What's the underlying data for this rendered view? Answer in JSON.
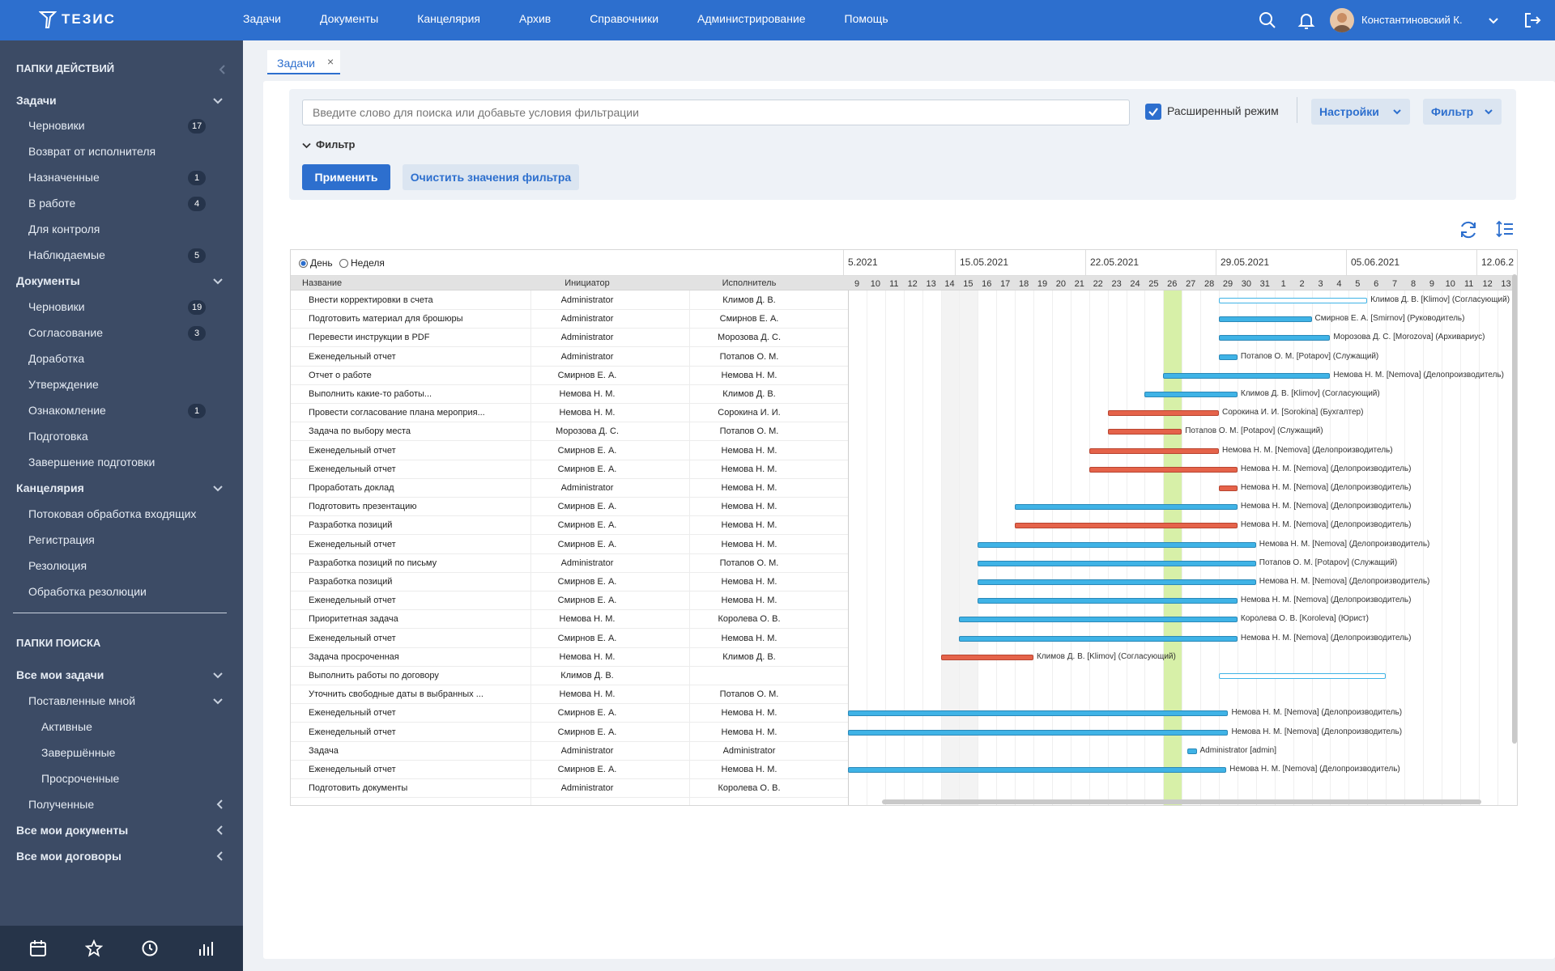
{
  "app": {
    "logo": "ТЕЗИС"
  },
  "topnav": [
    "Задачи",
    "Документы",
    "Канцелярия",
    "Архив",
    "Справочники",
    "Администрирование",
    "Помощь"
  ],
  "user": {
    "name": "Константиновский К."
  },
  "sidebar": {
    "actions_title": "ПАПКИ ДЕЙСТВИЙ",
    "search_title": "ПАПКИ ПОИСКА",
    "groups": [
      {
        "title": "Задачи",
        "items": [
          {
            "label": "Черновики",
            "count": "17"
          },
          {
            "label": "Возврат от исполнителя",
            "count": ""
          },
          {
            "label": "Назначенные",
            "count": "1"
          },
          {
            "label": "В работе",
            "count": "4"
          },
          {
            "label": "Для контроля",
            "count": ""
          },
          {
            "label": "Наблюдаемые",
            "count": "5"
          }
        ]
      },
      {
        "title": "Документы",
        "items": [
          {
            "label": "Черновики",
            "count": "19"
          },
          {
            "label": "Согласование",
            "count": "3"
          },
          {
            "label": "Доработка",
            "count": ""
          },
          {
            "label": "Утверждение",
            "count": ""
          },
          {
            "label": "Ознакомление",
            "count": "1"
          },
          {
            "label": "Подготовка",
            "count": ""
          },
          {
            "label": "Завершение подготовки",
            "count": ""
          }
        ]
      },
      {
        "title": "Канцелярия",
        "items": [
          {
            "label": "Потоковая обработка входящих",
            "count": ""
          },
          {
            "label": "Регистрация",
            "count": ""
          },
          {
            "label": "Резолюция",
            "count": ""
          },
          {
            "label": "Обработка резолюции",
            "count": ""
          }
        ]
      }
    ],
    "search": {
      "all_tasks": "Все мои задачи",
      "set_by_me": "Поставленные мной",
      "sub": [
        "Активные",
        "Завершённые",
        "Просроченные"
      ],
      "received": "Полученные",
      "all_docs": "Все мои документы",
      "all_contracts": "Все мои договоры"
    }
  },
  "tab": {
    "label": "Задачи"
  },
  "filter": {
    "placeholder": "Введите слово для поиска или добавьте условия фильтрации",
    "advanced_label": "Расширенный режим",
    "settings": "Настройки",
    "filter_btn": "Фильтр",
    "section": "Фильтр",
    "apply": "Применить",
    "clear": "Очистить значения фильтра"
  },
  "gantt": {
    "scale": {
      "day": "День",
      "week": "Неделя"
    },
    "weeks": [
      "5.2021",
      "15.05.2021",
      "22.05.2021",
      "29.05.2021",
      "05.06.2021",
      "12.06.2"
    ],
    "days": [
      "9",
      "10",
      "11",
      "12",
      "13",
      "14",
      "15",
      "16",
      "17",
      "18",
      "19",
      "20",
      "21",
      "22",
      "23",
      "24",
      "25",
      "26",
      "27",
      "28",
      "29",
      "30",
      "31",
      "1",
      "2",
      "3",
      "4",
      "5",
      "6",
      "7",
      "8",
      "9",
      "10",
      "11",
      "12",
      "13"
    ],
    "columns": {
      "name": "Название",
      "initiator": "Инициатор",
      "executor": "Исполнитель"
    },
    "colors": {
      "blue": "#3fb3e6",
      "orange": "#e5634a",
      "today": "#d7f0a8"
    },
    "rows": [
      {
        "name": "Внести корректировки в счета",
        "initiator": "Administrator",
        "executor": "Климов Д. В.",
        "start": 20,
        "end": 28,
        "color": "white",
        "label": "Климов Д. В. [Klimov] (Согласующий)"
      },
      {
        "name": "Подготовить материал для брошюры",
        "initiator": "Administrator",
        "executor": "Смирнов Е. А.",
        "start": 20,
        "end": 25,
        "color": "blue",
        "label": "Смирнов Е. А. [Smirnov] (Руководитель)"
      },
      {
        "name": "Перевести инструкции в PDF",
        "initiator": "Administrator",
        "executor": "Морозова Д. С.",
        "start": 20,
        "end": 26,
        "color": "blue",
        "label": "Морозова Д. С. [Morozova] (Архивариус)"
      },
      {
        "name": "Еженедельный отчет",
        "initiator": "Administrator",
        "executor": "Потапов О. М.",
        "start": 20,
        "end": 21,
        "color": "blue",
        "label": "Потапов О. М. [Potapov] (Служащий)"
      },
      {
        "name": "Отчет о работе",
        "initiator": "Смирнов Е. А.",
        "executor": "Немова Н. М.",
        "start": 17,
        "end": 26,
        "color": "blue",
        "label": "Немова Н. М. [Nemova] (Делопроизводитель)"
      },
      {
        "name": "Выполнить какие-то работы...",
        "initiator": "Немова Н. М.",
        "executor": "Климов Д. В.",
        "start": 16,
        "end": 21,
        "color": "blue",
        "label": "Климов Д. В. [Klimov] (Согласующий)"
      },
      {
        "name": "Провести согласование плана мероприя...",
        "initiator": "Немова Н. М.",
        "executor": "Сорокина И. И.",
        "start": 14,
        "end": 20,
        "color": "orange",
        "label": "Сорокина И. И. [Sorokina] (Бухгалтер)"
      },
      {
        "name": "Задача по выбору места",
        "initiator": "Морозова Д. С.",
        "executor": "Потапов О. М.",
        "start": 14,
        "end": 18,
        "color": "orange",
        "label": "Потапов О. М. [Potapov] (Служащий)"
      },
      {
        "name": "Еженедельный отчет",
        "initiator": "Смирнов Е. А.",
        "executor": "Немова Н. М.",
        "start": 13,
        "end": 20,
        "color": "orange",
        "label": "Немова Н. М. [Nemova] (Делопроизводитель)"
      },
      {
        "name": "Еженедельный отчет",
        "initiator": "Смирнов Е. А.",
        "executor": "Немова Н. М.",
        "start": 13,
        "end": 21,
        "color": "orange",
        "label": "Немова Н. М. [Nemova] (Делопроизводитель)"
      },
      {
        "name": "Проработать доклад",
        "initiator": "Administrator",
        "executor": "Немова Н. М.",
        "start": 20,
        "end": 21,
        "color": "orange",
        "label": "Немова Н. М. [Nemova] (Делопроизводитель)"
      },
      {
        "name": "Подготовить презентацию",
        "initiator": "Смирнов Е. А.",
        "executor": "Немова Н. М.",
        "start": 9,
        "end": 21,
        "color": "blue",
        "label": "Немова Н. М. [Nemova] (Делопроизводитель)"
      },
      {
        "name": "Разработка позиций",
        "initiator": "Смирнов Е. А.",
        "executor": "Немова Н. М.",
        "start": 9,
        "end": 21,
        "color": "orange",
        "label": "Немова Н. М. [Nemova] (Делопроизводитель)"
      },
      {
        "name": "Еженедельный отчет",
        "initiator": "Смирнов Е. А.",
        "executor": "Немова Н. М.",
        "start": 7,
        "end": 22,
        "color": "blue",
        "label": "Немова Н. М. [Nemova] (Делопроизводитель)"
      },
      {
        "name": "Разработка позиций по письму",
        "initiator": "Administrator",
        "executor": "Потапов О. М.",
        "start": 7,
        "end": 22,
        "color": "blue",
        "label": "Потапов О. М. [Potapov] (Служащий)"
      },
      {
        "name": "Разработка позиций",
        "initiator": "Смирнов Е. А.",
        "executor": "Немова Н. М.",
        "start": 7,
        "end": 22,
        "color": "blue",
        "label": "Немова Н. М. [Nemova] (Делопроизводитель)"
      },
      {
        "name": "Еженедельный отчет",
        "initiator": "Смирнов Е. А.",
        "executor": "Немова Н. М.",
        "start": 7,
        "end": 21,
        "color": "blue",
        "label": "Немова Н. М. [Nemova] (Делопроизводитель)"
      },
      {
        "name": "Приоритетная задача",
        "initiator": "Немова Н. М.",
        "executor": "Королева О. В.",
        "start": 6,
        "end": 21,
        "color": "blue",
        "label": "Королева О. В. [Koroleva] (Юрист)"
      },
      {
        "name": "Еженедельный отчет",
        "initiator": "Смирнов Е. А.",
        "executor": "Немова Н. М.",
        "start": 6,
        "end": 21,
        "color": "blue",
        "label": "Немова Н. М. [Nemova] (Делопроизводитель)"
      },
      {
        "name": "Задача просроченная",
        "initiator": "Немова Н. М.",
        "executor": "Климов Д. В.",
        "start": 5,
        "end": 10,
        "color": "orange",
        "label": "Климов Д. В. [Klimov] (Согласующий)"
      },
      {
        "name": "Выполнить работы по договору",
        "initiator": "Климов Д. В.",
        "executor": "",
        "start": 20,
        "end": 29,
        "color": "white",
        "label": ""
      },
      {
        "name": "Уточнить свободные даты в выбранных ...",
        "initiator": "Немова Н. М.",
        "executor": "Потапов О. М.",
        "start": null,
        "end": null,
        "color": "",
        "label": ""
      },
      {
        "name": "Еженедельный отчет",
        "initiator": "Смирнов Е. А.",
        "executor": "Немова Н. М.",
        "start": 0,
        "end": 20.5,
        "color": "blue",
        "label": "Немова Н. М. [Nemova] (Делопроизводитель)"
      },
      {
        "name": "Еженедельный отчет",
        "initiator": "Смирнов Е. А.",
        "executor": "Немова Н. М.",
        "start": 0,
        "end": 20.5,
        "color": "blue",
        "label": "Немова Н. М. [Nemova] (Делопроизводитель)"
      },
      {
        "name": "Задача",
        "initiator": "Administrator",
        "executor": "Administrator",
        "start": 18.3,
        "end": 18.8,
        "color": "blue",
        "label": "Administrator [admin]"
      },
      {
        "name": "Еженедельный отчет",
        "initiator": "Смирнов Е. А.",
        "executor": "Немова Н. М.",
        "start": 0,
        "end": 20.4,
        "color": "blue",
        "label": "Немова Н. М. [Nemova] (Делопроизводитель)"
      },
      {
        "name": "Подготовить документы",
        "initiator": "Administrator",
        "executor": "Королева О. В.",
        "start": null,
        "end": null,
        "color": "",
        "label": ""
      }
    ]
  }
}
